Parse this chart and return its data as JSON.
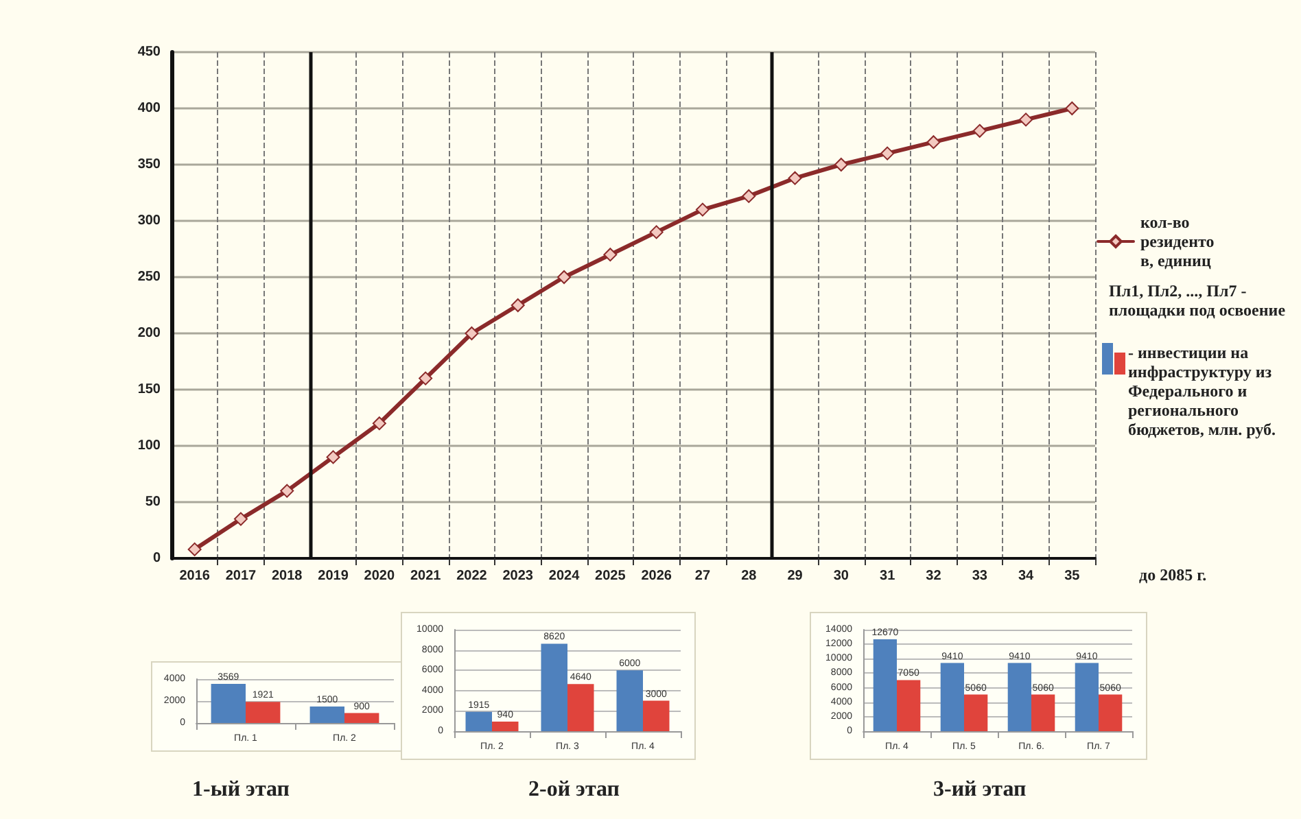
{
  "chart_data": [
    {
      "type": "line",
      "x": [
        2016,
        2017,
        2018,
        2019,
        2020,
        2021,
        2022,
        2023,
        2024,
        2025,
        2026,
        2027,
        2028,
        2029,
        2030,
        2031,
        2032,
        2033,
        2034,
        2035
      ],
      "series": [
        {
          "name": "кол-во резидентов, единиц",
          "color": "#8b2a2a",
          "values": [
            8,
            35,
            60,
            90,
            120,
            160,
            200,
            225,
            250,
            270,
            290,
            310,
            322,
            338,
            350,
            360,
            370,
            380,
            390,
            400
          ]
        }
      ],
      "xlim": [
        2015.5,
        2035.5
      ],
      "xticks": [
        2016,
        2017,
        2018,
        2019,
        2020,
        2021,
        2022,
        2023,
        2024,
        2025,
        2026,
        {
          "value": 2027,
          "label": "27"
        },
        {
          "value": 2028,
          "label": "28"
        },
        {
          "value": 2029,
          "label": "29"
        },
        {
          "value": 2030,
          "label": "30"
        },
        {
          "value": 2031,
          "label": "31"
        },
        {
          "value": 2032,
          "label": "32"
        },
        {
          "value": 2033,
          "label": "33"
        },
        {
          "value": 2034,
          "label": "34"
        },
        {
          "value": 2035,
          "label": "35"
        },
        {
          "value": 2016.5,
          "label": null
        },
        {
          "value": 2017.5,
          "label": null
        },
        {
          "value": 2019.5,
          "label": null
        },
        {
          "value": 2020.5,
          "label": null
        },
        {
          "value": 2021.5,
          "label": null
        },
        {
          "value": 2022.5,
          "label": null
        },
        {
          "value": 2023.5,
          "label": null
        },
        {
          "value": 2024.5,
          "label": null
        },
        {
          "value": 2025.5,
          "label": null
        },
        {
          "value": 2026.5,
          "label": null
        },
        {
          "value": 2027.5,
          "label": null
        },
        {
          "value": 2029.5,
          "label": null
        },
        {
          "value": 2030.5,
          "label": null
        },
        {
          "value": 2031.5,
          "label": null
        },
        {
          "value": 2032.5,
          "label": null
        },
        {
          "value": 2033.5,
          "label": null
        },
        {
          "value": 2034.5,
          "label": null
        },
        {
          "value": 2035.5,
          "label": null
        }
      ],
      "ylim": [
        0,
        450
      ],
      "yticks": [
        0,
        50,
        100,
        150,
        200,
        250,
        300,
        350,
        400,
        450
      ],
      "grid": true,
      "legend": "right",
      "marker": "diamond",
      "line_style": "solid",
      "ref_lines": [
        {
          "axis": "x",
          "value": 2018.5
        },
        {
          "axis": "x",
          "value": 2028.5
        }
      ],
      "annotations": [
        "Пл1, Пл2, ..., Пл7 - площадки под освоение",
        "- инвестиции на инфраструктуру из Федерального и регионального бюджетов, млн. руб.",
        "до 2085 г.",
        "1-ый этап",
        "2-ой этап",
        "3-ий этап"
      ]
    },
    {
      "type": "bar",
      "categories": [
        "Пл. 1",
        "Пл. 2"
      ],
      "series": [
        {
          "color": "#4f81bd",
          "values": [
            3569,
            1500
          ]
        },
        {
          "color": "#e0443c",
          "values": [
            1921,
            900
          ]
        }
      ],
      "ylim": [
        0,
        4000
      ],
      "yticks": [
        0,
        2000,
        4000
      ],
      "grid": "y",
      "data_labels": true
    },
    {
      "type": "bar",
      "categories": [
        "Пл. 2",
        "Пл. 3",
        "Пл. 4"
      ],
      "series": [
        {
          "color": "#4f81bd",
          "values": [
            1915,
            8620,
            6000
          ]
        },
        {
          "color": "#e0443c",
          "values": [
            940,
            4640,
            3000
          ]
        }
      ],
      "ylim": [
        0,
        10000
      ],
      "yticks": [
        0,
        2000,
        4000,
        6000,
        8000,
        10000
      ],
      "grid": "y",
      "data_labels": true
    },
    {
      "type": "bar",
      "categories": [
        "Пл. 4",
        "Пл. 5",
        "Пл. 6.",
        "Пл. 7"
      ],
      "series": [
        {
          "color": "#4f81bd",
          "values": [
            12670,
            9410,
            9410,
            9410
          ]
        },
        {
          "color": "#e0443c",
          "values": [
            7050,
            5060,
            5060,
            5060
          ]
        }
      ],
      "ylim": [
        0,
        14000
      ],
      "yticks": [
        0,
        2000,
        4000,
        6000,
        8000,
        10000,
        12000,
        14000
      ],
      "grid": "y",
      "data_labels": true
    }
  ]
}
